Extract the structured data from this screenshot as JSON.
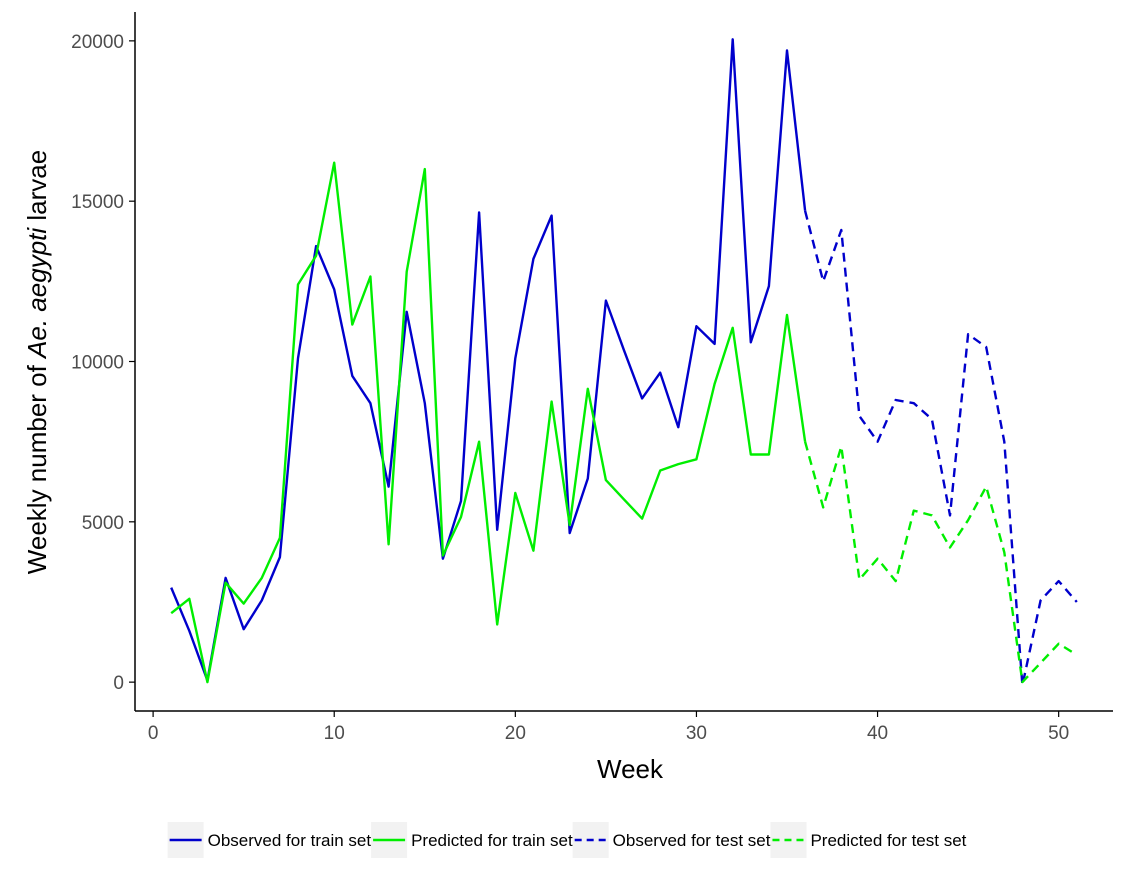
{
  "chart_data": {
    "type": "line",
    "xlabel": "Week",
    "ylabel": {
      "prefix": "Weekly number of ",
      "italic": "Ae. aegypti",
      "suffix": " larvae"
    },
    "xlim": [
      -1,
      53
    ],
    "ylim": [
      -900,
      20900
    ],
    "x_ticks": [
      0,
      10,
      20,
      30,
      40,
      50
    ],
    "y_ticks": [
      0,
      5000,
      10000,
      15000,
      20000
    ],
    "x_tick_labels": [
      "0",
      "10",
      "20",
      "30",
      "40",
      "50"
    ],
    "y_tick_labels": [
      "0",
      "5000",
      "10000",
      "15000",
      "20000"
    ],
    "grid": false,
    "legend_position": "bottom",
    "series": [
      {
        "name": "Observed for train set",
        "color": "#0000cc",
        "dash": "solid",
        "x": [
          1,
          2,
          3,
          4,
          5,
          6,
          7,
          8,
          9,
          10,
          11,
          12,
          13,
          14,
          15,
          16,
          17,
          18,
          19,
          20,
          21,
          22,
          23,
          24,
          25,
          26,
          27,
          28,
          29,
          30,
          31,
          32,
          33,
          34,
          35,
          36
        ],
        "y": [
          2950,
          1600,
          50,
          3250,
          1650,
          2550,
          3900,
          10100,
          13600,
          12250,
          9550,
          8700,
          6100,
          11550,
          8700,
          3850,
          5650,
          14650,
          4750,
          10100,
          13200,
          14550,
          4650,
          6350,
          11900,
          10350,
          8850,
          9650,
          7950,
          11100,
          10550,
          20050,
          10600,
          12350,
          19700,
          14700
        ]
      },
      {
        "name": "Predicted for train set",
        "color": "#00ee00",
        "dash": "solid",
        "x": [
          1,
          2,
          3,
          4,
          5,
          6,
          7,
          8,
          9,
          10,
          11,
          12,
          13,
          14,
          15,
          16,
          17,
          18,
          19,
          20,
          21,
          22,
          23,
          24,
          25,
          26,
          27,
          28,
          29,
          30,
          31,
          32,
          33,
          34,
          35,
          36
        ],
        "y": [
          2150,
          2600,
          0,
          3100,
          2450,
          3250,
          4500,
          12400,
          13300,
          16200,
          11150,
          12650,
          4300,
          12800,
          16000,
          3950,
          5150,
          7500,
          1800,
          5900,
          4100,
          8750,
          4900,
          9150,
          6300,
          5700,
          5100,
          6600,
          6800,
          6950,
          9300,
          11050,
          7100,
          7100,
          11450,
          7500
        ]
      },
      {
        "name": "Observed for test set",
        "color": "#0000cc",
        "dash": "dashed",
        "x": [
          36,
          37,
          38,
          39,
          40,
          41,
          42,
          43,
          44,
          45,
          46,
          47,
          48,
          49,
          50,
          51
        ],
        "y": [
          14700,
          12500,
          14100,
          8300,
          7500,
          8800,
          8700,
          8200,
          5200,
          10850,
          10450,
          7500,
          -100,
          2550,
          3150,
          2500
        ]
      },
      {
        "name": "Predicted for test set",
        "color": "#00ee00",
        "dash": "dashed",
        "x": [
          36,
          37,
          38,
          39,
          40,
          41,
          42,
          43,
          44,
          45,
          46,
          47,
          48,
          49,
          50,
          51
        ],
        "y": [
          7500,
          5450,
          7350,
          3200,
          3850,
          3150,
          5350,
          5200,
          4200,
          5050,
          6100,
          4050,
          0,
          600,
          1200,
          850
        ]
      }
    ]
  }
}
